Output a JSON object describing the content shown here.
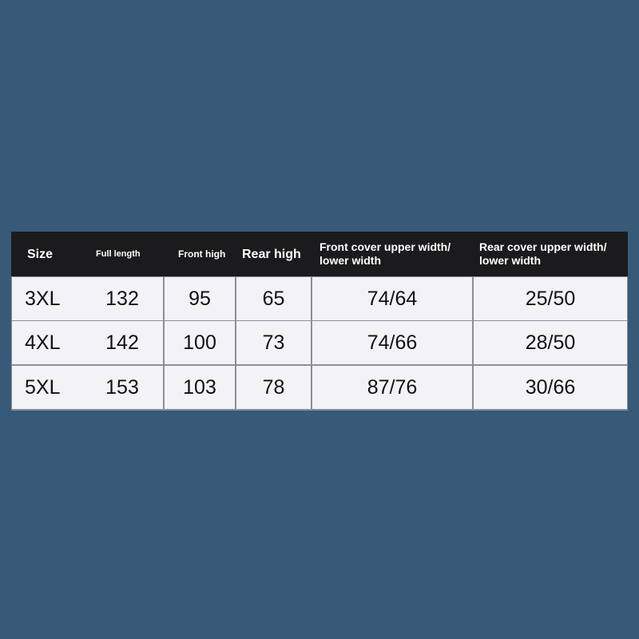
{
  "table": {
    "header": [
      "Size",
      "Full length",
      "Front high",
      "Rear high",
      "Front cover upper width/ lower width",
      "Rear cover upper width/ lower width"
    ],
    "rows": [
      [
        "3XL",
        132,
        95,
        65,
        "74/64",
        "25/50"
      ],
      [
        "4XL",
        142,
        100,
        73,
        "74/66",
        "28/50"
      ],
      [
        "5XL",
        153,
        103,
        78,
        "87/76",
        "30/66"
      ]
    ]
  }
}
